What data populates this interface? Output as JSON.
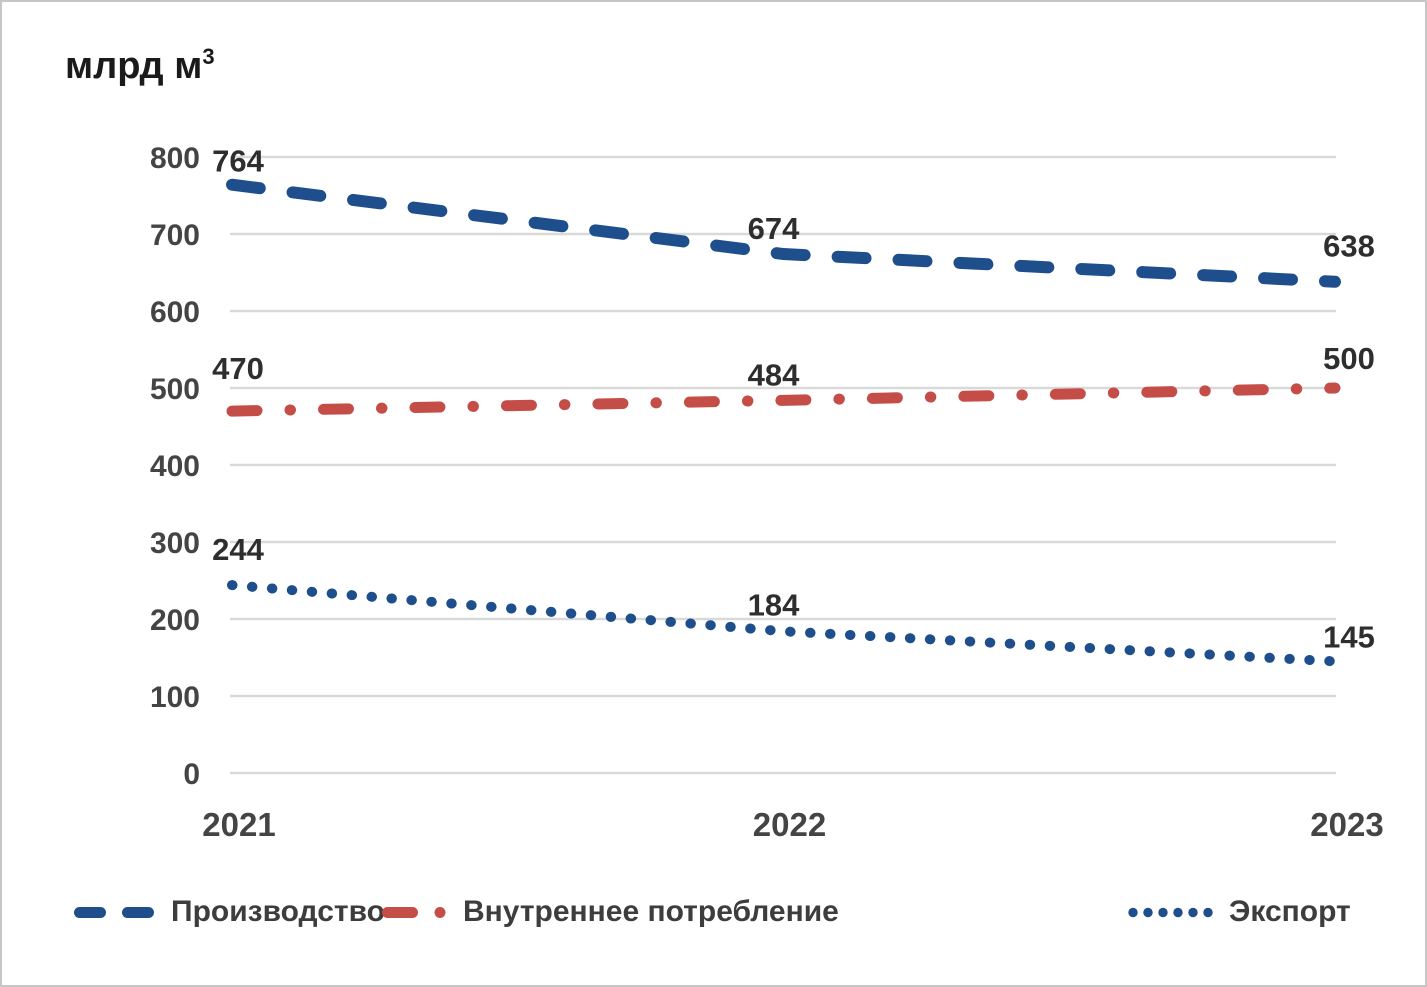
{
  "chart": {
    "title_main": "млрд м",
    "title_sup": "3"
  },
  "chart_data": {
    "type": "line",
    "title": "млрд м³",
    "xlabel": "",
    "ylabel": "млрд м³",
    "x": [
      "2021",
      "2022",
      "2023"
    ],
    "series": [
      {
        "name": "Производство",
        "values": [
          764,
          674,
          638
        ],
        "color": "#1f4e8c",
        "dash_style": "dashed"
      },
      {
        "name": "Внутреннее потребление",
        "values": [
          470,
          484,
          500
        ],
        "color": "#c54d48",
        "dash_style": "dash-dot"
      },
      {
        "name": "Экспорт",
        "values": [
          244,
          184,
          145
        ],
        "color": "#1f4e8c",
        "dash_style": "dotted"
      }
    ],
    "ylim": [
      0,
      800
    ],
    "yticks": [
      0,
      100,
      200,
      300,
      400,
      500,
      600,
      700,
      800
    ],
    "grid": true,
    "gridline_color": "#d9d9d9",
    "tick_label_color": "#444444",
    "data_label_color": "#2e2e2e",
    "data_labels": true,
    "legend_position": "bottom"
  }
}
